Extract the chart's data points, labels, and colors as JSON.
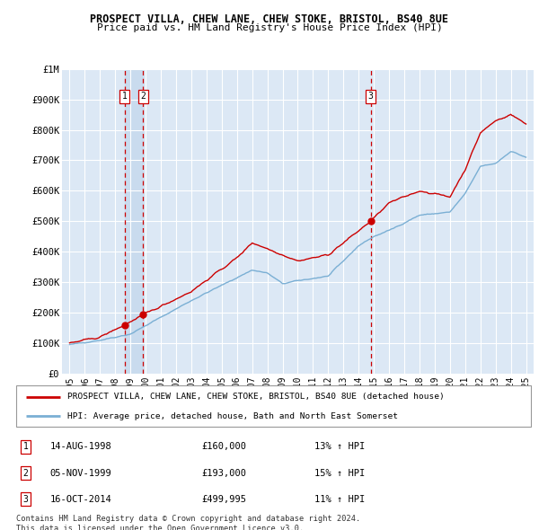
{
  "title": "PROSPECT VILLA, CHEW LANE, CHEW STOKE, BRISTOL, BS40 8UE",
  "subtitle": "Price paid vs. HM Land Registry's House Price Index (HPI)",
  "ylabel_ticks": [
    "£0",
    "£100K",
    "£200K",
    "£300K",
    "£400K",
    "£500K",
    "£600K",
    "£700K",
    "£800K",
    "£900K",
    "£1M"
  ],
  "ytick_values": [
    0,
    100000,
    200000,
    300000,
    400000,
    500000,
    600000,
    700000,
    800000,
    900000,
    1000000
  ],
  "xlim": [
    1994.5,
    2025.5
  ],
  "ylim": [
    0,
    1000000
  ],
  "bg_color": "#dce8f5",
  "fig_bg": "#ffffff",
  "grid_color": "#ffffff",
  "red_line_color": "#cc0000",
  "blue_line_color": "#7aafd4",
  "sale_marker_color": "#cc0000",
  "dashed_line_color": "#cc0000",
  "shade_color": "#c5d8ed",
  "transactions": [
    {
      "label": 1,
      "year": 1998.62,
      "price": 160000,
      "date": "14-AUG-1998",
      "pct": "13%",
      "dir": "↑"
    },
    {
      "label": 2,
      "year": 1999.84,
      "price": 193000,
      "date": "05-NOV-1999",
      "pct": "15%",
      "dir": "↑"
    },
    {
      "label": 3,
      "year": 2014.79,
      "price": 499995,
      "date": "16-OCT-2014",
      "pct": "11%",
      "dir": "↑"
    }
  ],
  "legend_red": "PROSPECT VILLA, CHEW LANE, CHEW STOKE, BRISTOL, BS40 8UE (detached house)",
  "legend_blue": "HPI: Average price, detached house, Bath and North East Somerset",
  "footer": "Contains HM Land Registry data © Crown copyright and database right 2024.\nThis data is licensed under the Open Government Licence v3.0.",
  "xticks": [
    1995,
    1996,
    1997,
    1998,
    1999,
    2000,
    2001,
    2002,
    2003,
    2004,
    2005,
    2006,
    2007,
    2008,
    2009,
    2010,
    2011,
    2012,
    2013,
    2014,
    2015,
    2016,
    2017,
    2018,
    2019,
    2020,
    2021,
    2022,
    2023,
    2024,
    2025
  ],
  "hpi_anchors": {
    "years": [
      1995,
      1997,
      1999,
      2001,
      2003,
      2005,
      2007,
      2008,
      2009,
      2010,
      2012,
      2014,
      2015,
      2016,
      2018,
      2020,
      2021,
      2022,
      2023,
      2024,
      2025
    ],
    "values": [
      95000,
      110000,
      130000,
      185000,
      240000,
      290000,
      340000,
      330000,
      295000,
      305000,
      320000,
      420000,
      450000,
      470000,
      520000,
      530000,
      590000,
      680000,
      690000,
      730000,
      710000
    ]
  },
  "red_anchors": {
    "years": [
      1995,
      1997,
      1998.62,
      1999.84,
      2003,
      2006,
      2007,
      2008,
      2010,
      2012,
      2014.79,
      2016,
      2018,
      2020,
      2021,
      2022,
      2023,
      2024,
      2025
    ],
    "values": [
      100000,
      120000,
      160000,
      193000,
      270000,
      380000,
      430000,
      410000,
      370000,
      390000,
      499995,
      560000,
      600000,
      580000,
      670000,
      790000,
      830000,
      850000,
      820000
    ]
  }
}
